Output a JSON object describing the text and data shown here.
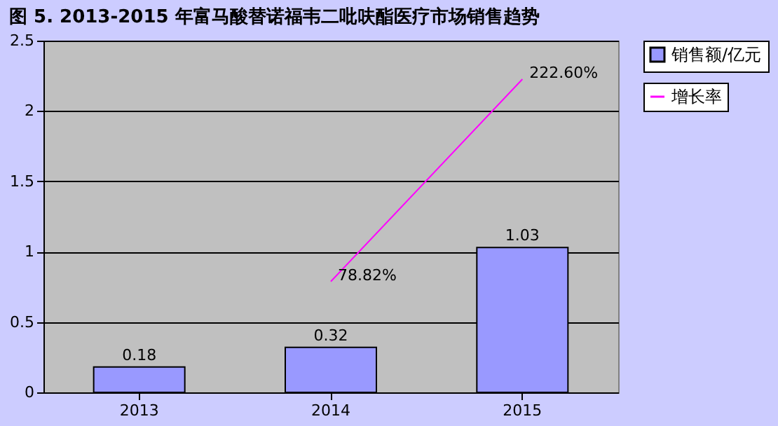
{
  "chart_data": {
    "type": "bar",
    "title": "图 5. 2013-2015 年富马酸替诺福韦二吡呋酯医疗市场销售趋势",
    "categories": [
      "2013",
      "2014",
      "2015"
    ],
    "series": [
      {
        "name": "销售额/亿元",
        "color": "#9999ff",
        "values": [
          0.18,
          0.32,
          1.03
        ]
      },
      {
        "name": "增长率",
        "type": "line",
        "color": "#ff00ff",
        "values": [
          null,
          0.7882,
          2.226
        ],
        "value_labels": [
          null,
          "78.82%",
          "222.60%"
        ]
      }
    ],
    "data_labels": true,
    "ylim": [
      0,
      2.5
    ],
    "yticks": [
      0,
      0.5,
      1,
      1.5,
      2,
      2.5
    ],
    "grid": "y",
    "legend": "right"
  }
}
